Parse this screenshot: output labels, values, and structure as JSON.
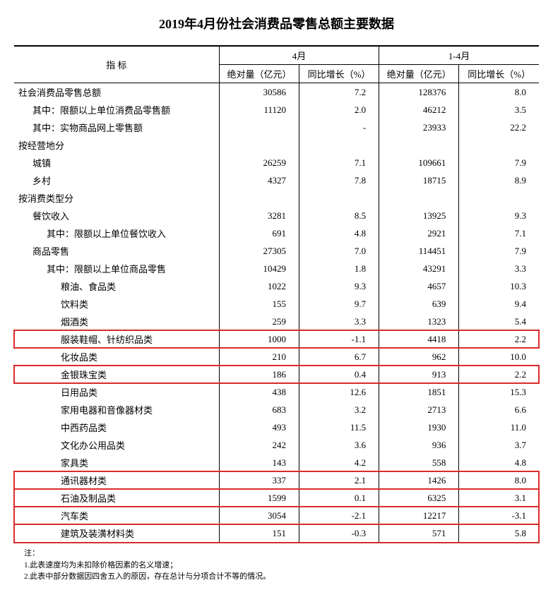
{
  "title": "2019年4月份社会消费品零售总额主要数据",
  "indicator_label": "指 标",
  "period_a": "4月",
  "period_b": "1-4月",
  "col_abs": "绝对量（亿元）",
  "col_yoy": "同比增长（%）",
  "rows": [
    {
      "label": "社会消费品零售总额",
      "indent": 0,
      "a_abs": "30586",
      "a_yoy": "7.2",
      "b_abs": "128376",
      "b_yoy": "8.0",
      "hl": false
    },
    {
      "label": "其中：限额以上单位消费品零售额",
      "indent": 1,
      "a_abs": "11120",
      "a_yoy": "2.0",
      "b_abs": "46212",
      "b_yoy": "3.5",
      "hl": false
    },
    {
      "label": "其中：实物商品网上零售额",
      "indent": 1,
      "a_abs": "",
      "a_yoy": "-",
      "b_abs": "23933",
      "b_yoy": "22.2",
      "hl": false
    },
    {
      "label": "按经营地分",
      "indent": 0,
      "a_abs": "",
      "a_yoy": "",
      "b_abs": "",
      "b_yoy": "",
      "hl": false
    },
    {
      "label": "城镇",
      "indent": 1,
      "a_abs": "26259",
      "a_yoy": "7.1",
      "b_abs": "109661",
      "b_yoy": "7.9",
      "hl": false
    },
    {
      "label": "乡村",
      "indent": 1,
      "a_abs": "4327",
      "a_yoy": "7.8",
      "b_abs": "18715",
      "b_yoy": "8.9",
      "hl": false
    },
    {
      "label": "按消费类型分",
      "indent": 0,
      "a_abs": "",
      "a_yoy": "",
      "b_abs": "",
      "b_yoy": "",
      "hl": false
    },
    {
      "label": "餐饮收入",
      "indent": 1,
      "a_abs": "3281",
      "a_yoy": "8.5",
      "b_abs": "13925",
      "b_yoy": "9.3",
      "hl": false
    },
    {
      "label": "其中：限额以上单位餐饮收入",
      "indent": 2,
      "a_abs": "691",
      "a_yoy": "4.8",
      "b_abs": "2921",
      "b_yoy": "7.1",
      "hl": false
    },
    {
      "label": "商品零售",
      "indent": 1,
      "a_abs": "27305",
      "a_yoy": "7.0",
      "b_abs": "114451",
      "b_yoy": "7.9",
      "hl": false
    },
    {
      "label": "其中：限额以上单位商品零售",
      "indent": 2,
      "a_abs": "10429",
      "a_yoy": "1.8",
      "b_abs": "43291",
      "b_yoy": "3.3",
      "hl": false
    },
    {
      "label": "粮油、食品类",
      "indent": 3,
      "a_abs": "1022",
      "a_yoy": "9.3",
      "b_abs": "4657",
      "b_yoy": "10.3",
      "hl": false
    },
    {
      "label": "饮料类",
      "indent": 3,
      "a_abs": "155",
      "a_yoy": "9.7",
      "b_abs": "639",
      "b_yoy": "9.4",
      "hl": false
    },
    {
      "label": "烟酒类",
      "indent": 3,
      "a_abs": "259",
      "a_yoy": "3.3",
      "b_abs": "1323",
      "b_yoy": "5.4",
      "hl": false
    },
    {
      "label": "服装鞋帽、针纺织品类",
      "indent": 3,
      "a_abs": "1000",
      "a_yoy": "-1.1",
      "b_abs": "4418",
      "b_yoy": "2.2",
      "hl": true
    },
    {
      "label": "化妆品类",
      "indent": 3,
      "a_abs": "210",
      "a_yoy": "6.7",
      "b_abs": "962",
      "b_yoy": "10.0",
      "hl": false
    },
    {
      "label": "金银珠宝类",
      "indent": 3,
      "a_abs": "186",
      "a_yoy": "0.4",
      "b_abs": "913",
      "b_yoy": "2.2",
      "hl": true
    },
    {
      "label": "日用品类",
      "indent": 3,
      "a_abs": "438",
      "a_yoy": "12.6",
      "b_abs": "1851",
      "b_yoy": "15.3",
      "hl": false
    },
    {
      "label": "家用电器和音像器材类",
      "indent": 3,
      "a_abs": "683",
      "a_yoy": "3.2",
      "b_abs": "2713",
      "b_yoy": "6.6",
      "hl": false
    },
    {
      "label": "中西药品类",
      "indent": 3,
      "a_abs": "493",
      "a_yoy": "11.5",
      "b_abs": "1930",
      "b_yoy": "11.0",
      "hl": false
    },
    {
      "label": "文化办公用品类",
      "indent": 3,
      "a_abs": "242",
      "a_yoy": "3.6",
      "b_abs": "936",
      "b_yoy": "3.7",
      "hl": false
    },
    {
      "label": "家具类",
      "indent": 3,
      "a_abs": "143",
      "a_yoy": "4.2",
      "b_abs": "558",
      "b_yoy": "4.8",
      "hl": false
    },
    {
      "label": "通讯器材类",
      "indent": 3,
      "a_abs": "337",
      "a_yoy": "2.1",
      "b_abs": "1426",
      "b_yoy": "8.0",
      "hl": true
    },
    {
      "label": "石油及制品类",
      "indent": 3,
      "a_abs": "1599",
      "a_yoy": "0.1",
      "b_abs": "6325",
      "b_yoy": "3.1",
      "hl": true
    },
    {
      "label": "汽车类",
      "indent": 3,
      "a_abs": "3054",
      "a_yoy": "-2.1",
      "b_abs": "12217",
      "b_yoy": "-3.1",
      "hl": true
    },
    {
      "label": "建筑及装潢材料类",
      "indent": 3,
      "a_abs": "151",
      "a_yoy": "-0.3",
      "b_abs": "571",
      "b_yoy": "5.8",
      "hl": true
    }
  ],
  "footnote_header": "注：",
  "footnotes": [
    "1.此表速度均为未扣除价格因素的名义增速；",
    "2.此表中部分数据因四舍五入的原因，存在总计与分项合计不等的情况。"
  ]
}
